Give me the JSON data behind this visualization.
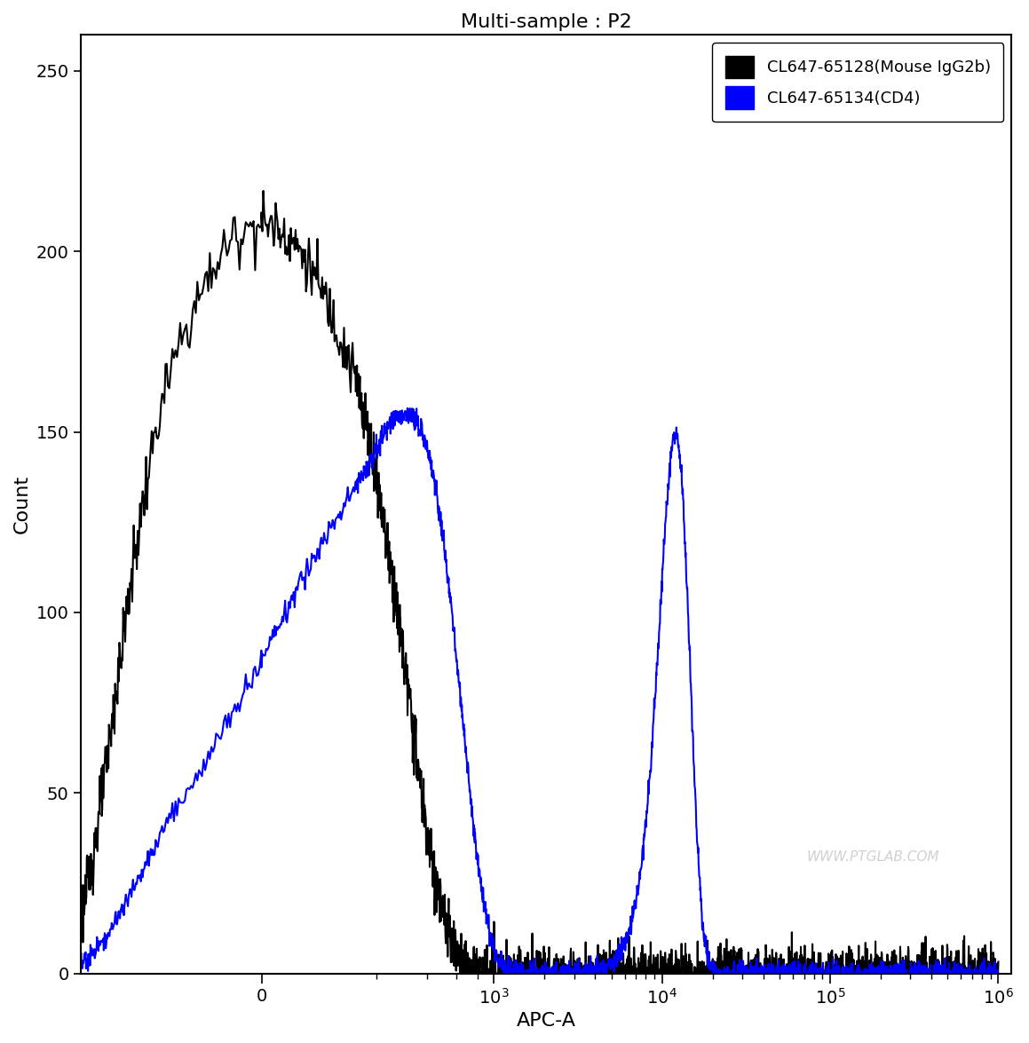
{
  "title": "Multi-sample : P2",
  "xlabel": "APC-A",
  "ylabel": "Count",
  "ylim": [
    0,
    260
  ],
  "yticks": [
    0,
    50,
    100,
    150,
    200,
    250
  ],
  "background_color": "#ffffff",
  "legend_labels": [
    "CL647-65128(Mouse IgG2b)",
    "CL647-65134(CD4)"
  ],
  "legend_colors": [
    "#000000",
    "#0000ff"
  ],
  "watermark": "WWW.PTGLAB.COM",
  "title_fontsize": 16,
  "axis_fontsize": 14,
  "legend_fontsize": 13,
  "line_width": 1.5,
  "linthresh": 150,
  "linscale": 0.5
}
